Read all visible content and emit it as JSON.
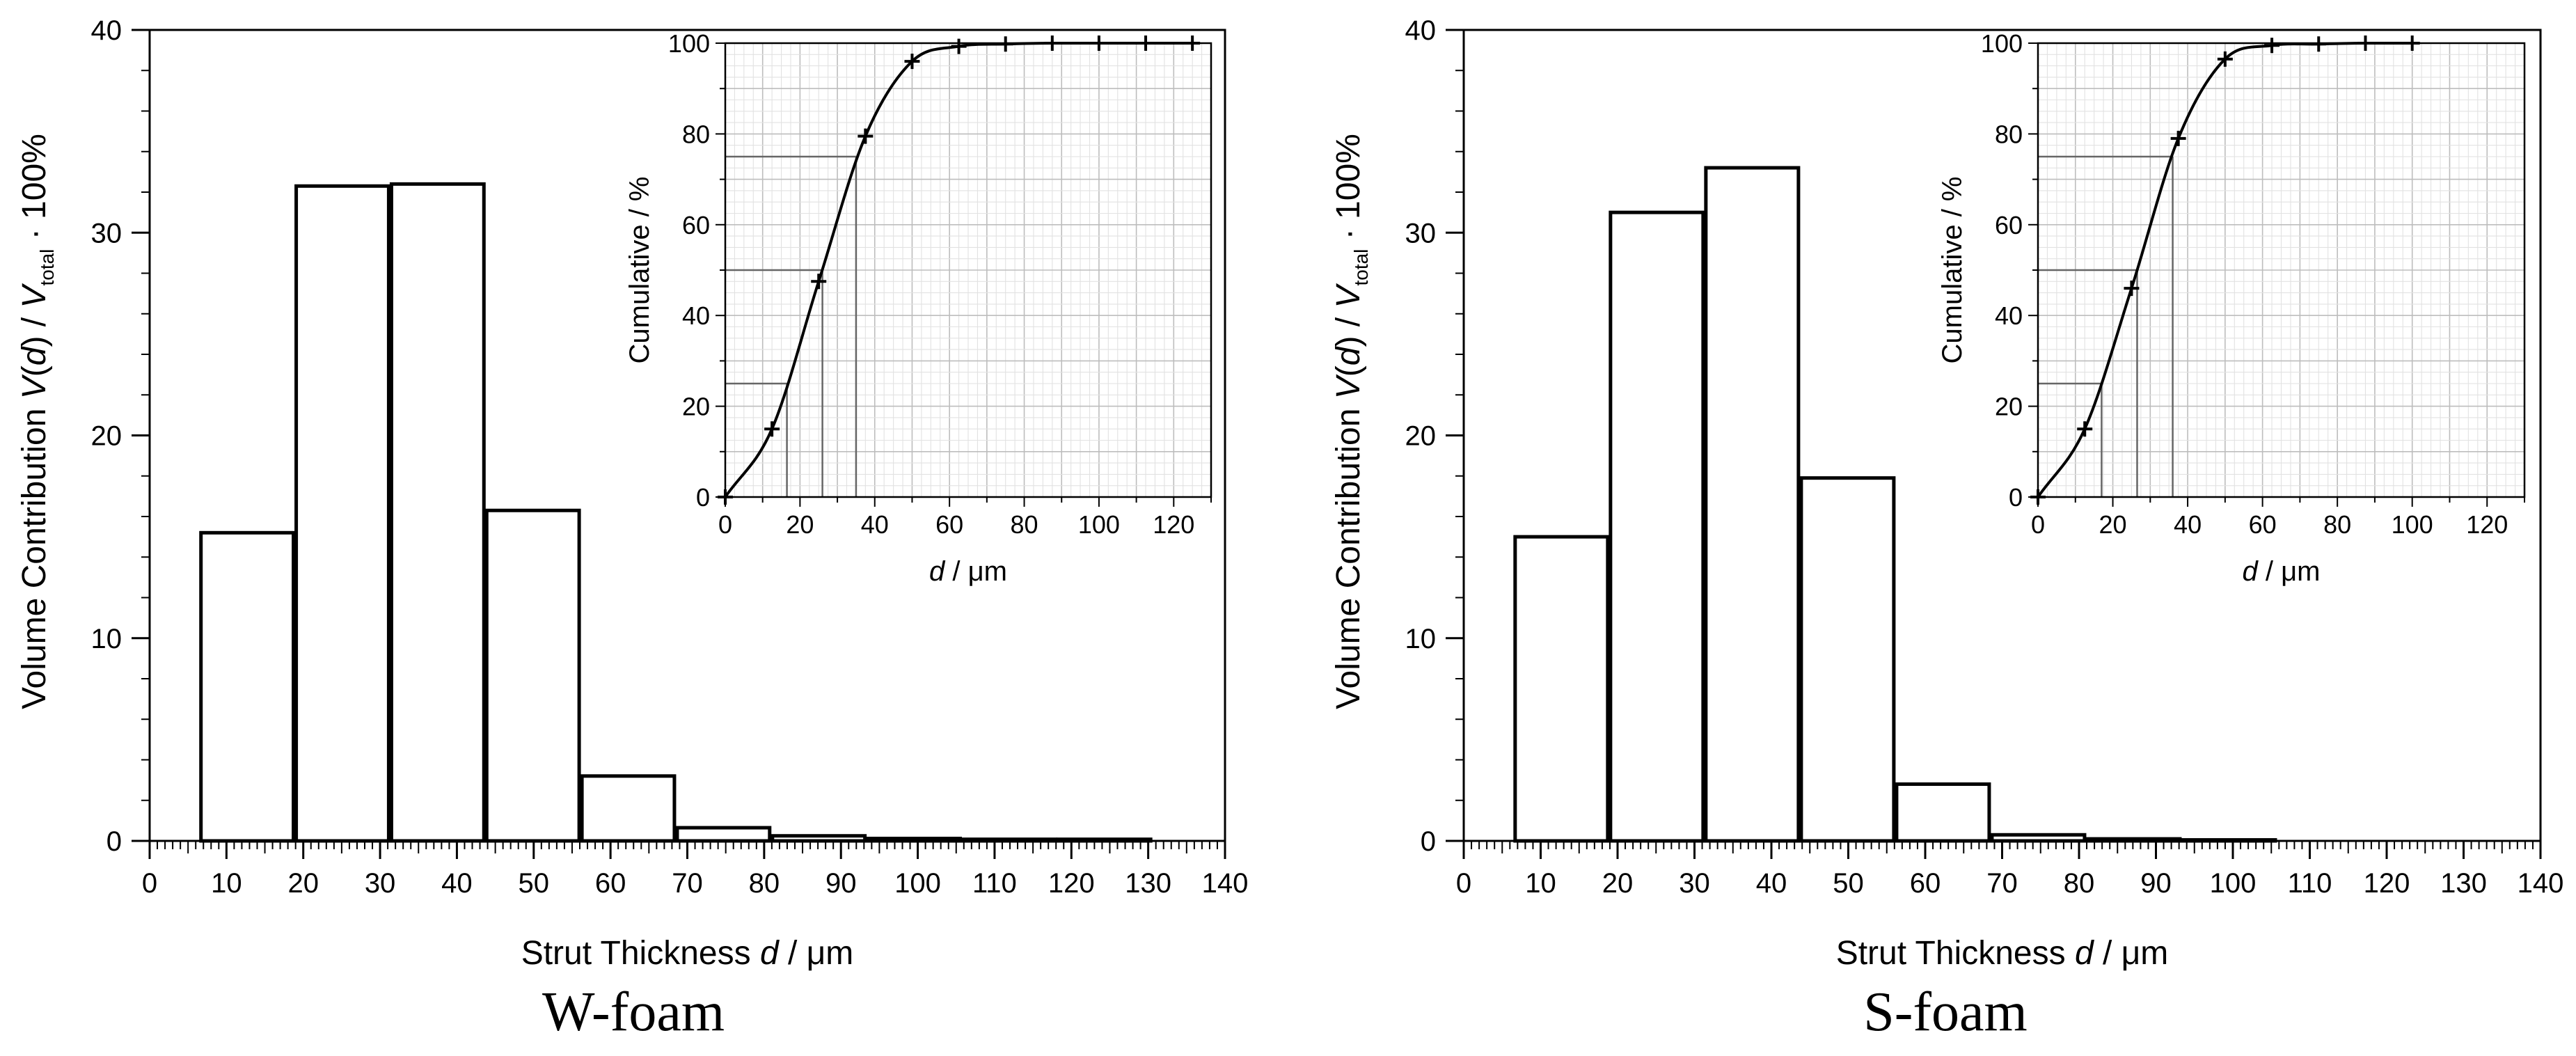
{
  "chart_data": [
    {
      "type": "bar",
      "caption": "W-foam",
      "xlabel": {
        "prefix": "Strut Thickness ",
        "var": "d",
        "unit": " / μm"
      },
      "ylabel": {
        "prefix": "Volume Contribution ",
        "v": "V",
        "paren_open": "(",
        "d": "d",
        "paren_close": ")",
        "slash": " / ",
        "vt": "V",
        "sub": "total",
        "suffix": " · 100%"
      },
      "xlim": [
        0,
        140
      ],
      "ylim": [
        0,
        40
      ],
      "x_ticks": [
        "0",
        "10",
        "20",
        "30",
        "40",
        "50",
        "60",
        "70",
        "80",
        "90",
        "100",
        "110",
        "120",
        "130",
        "140"
      ],
      "y_ticks": [
        "0",
        "10",
        "20",
        "30",
        "40"
      ],
      "bin_edges": [
        6.5,
        18.9,
        31.3,
        43.7,
        56.1,
        68.5,
        80.9,
        93.3,
        105.7,
        118.1,
        130.5
      ],
      "values": [
        15.2,
        32.3,
        32.4,
        16.3,
        3.2,
        0.65,
        0.25,
        0.12,
        0.08,
        0.08
      ],
      "inset": {
        "type": "line",
        "xlabel": {
          "var": "d",
          "unit": " / μm"
        },
        "ylabel": "Cumulative / %",
        "xlim": [
          0,
          130
        ],
        "ylim": [
          0,
          100
        ],
        "x_ticks": [
          "0",
          "20",
          "40",
          "60",
          "80",
          "100",
          "120"
        ],
        "y_ticks": [
          "0",
          "20",
          "40",
          "60",
          "80",
          "100"
        ],
        "x": [
          0,
          12.5,
          25,
          37.5,
          50,
          62.5,
          75,
          87.5,
          100,
          112.5,
          125
        ],
        "y": [
          0,
          15,
          47.5,
          79.5,
          96,
          99.3,
          99.8,
          100,
          100,
          100,
          100
        ],
        "reference_lines": [
          {
            "cumulative": 25,
            "d": 16.5
          },
          {
            "cumulative": 50,
            "d": 26
          },
          {
            "cumulative": 75,
            "d": 35
          }
        ]
      }
    },
    {
      "type": "bar",
      "caption": "S-foam",
      "xlabel": {
        "prefix": "Strut Thickness ",
        "var": "d",
        "unit": " / μm"
      },
      "ylabel": {
        "prefix": "Volume Contribution ",
        "v": "V",
        "paren_open": "(",
        "d": "d",
        "paren_close": ")",
        "slash": " / ",
        "vt": "V",
        "sub": "total",
        "suffix": " · 100%"
      },
      "xlim": [
        0,
        140
      ],
      "ylim": [
        0,
        40
      ],
      "x_ticks": [
        "0",
        "10",
        "20",
        "30",
        "40",
        "50",
        "60",
        "70",
        "80",
        "90",
        "100",
        "110",
        "120",
        "130",
        "140"
      ],
      "y_ticks": [
        "0",
        "10",
        "20",
        "30",
        "40"
      ],
      "bin_edges": [
        6.5,
        18.9,
        31.3,
        43.7,
        56.1,
        68.5,
        80.9,
        93.3,
        105.7
      ],
      "values": [
        15.0,
        31.0,
        33.2,
        17.9,
        2.8,
        0.3,
        0.1,
        0.05
      ],
      "inset": {
        "type": "line",
        "xlabel": {
          "var": "d",
          "unit": " / μm"
        },
        "ylabel": "Cumulative / %",
        "xlim": [
          0,
          130
        ],
        "ylim": [
          0,
          100
        ],
        "x_ticks": [
          "0",
          "20",
          "40",
          "60",
          "80",
          "100",
          "120"
        ],
        "y_ticks": [
          "0",
          "20",
          "40",
          "60",
          "80",
          "100"
        ],
        "x": [
          0,
          12.5,
          25,
          37.5,
          50,
          62.5,
          75,
          87.5,
          100
        ],
        "y": [
          0,
          15,
          46,
          79,
          96.5,
          99.5,
          99.8,
          100,
          100
        ],
        "reference_lines": [
          {
            "cumulative": 25,
            "d": 17
          },
          {
            "cumulative": 50,
            "d": 26.5
          },
          {
            "cumulative": 75,
            "d": 36
          }
        ]
      }
    }
  ]
}
